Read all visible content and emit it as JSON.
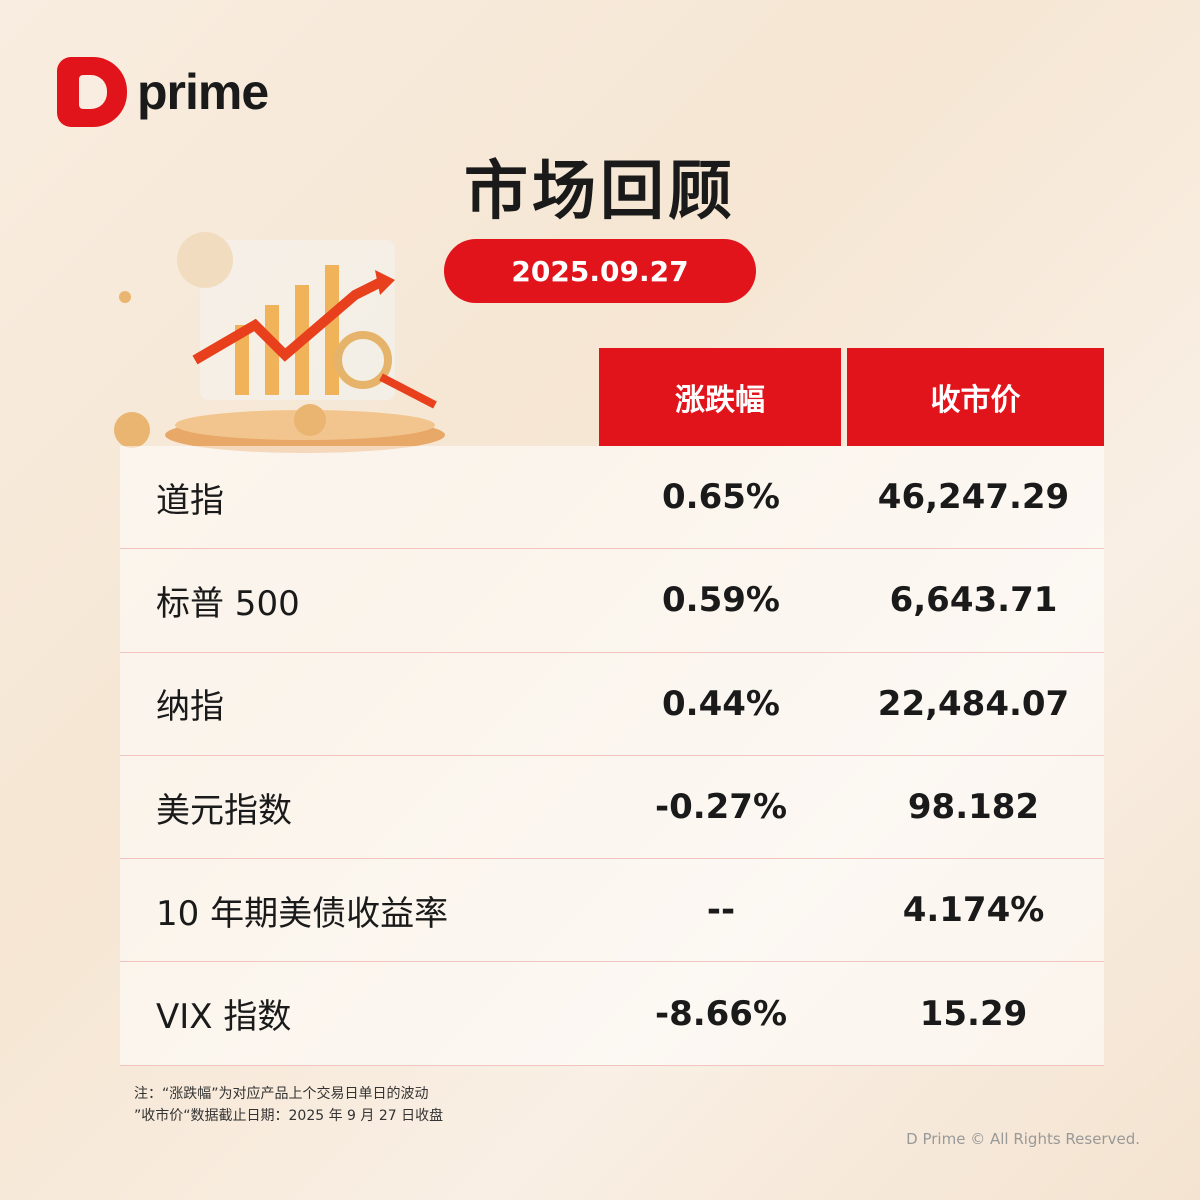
{
  "brand": {
    "name": "prime"
  },
  "title": "市场回顾",
  "date": "2025.09.27",
  "table": {
    "headers": [
      "涨跌幅",
      "收市价"
    ],
    "rows": [
      {
        "name": "道指",
        "change": "0.65%",
        "close": "46,247.29"
      },
      {
        "name": "标普 500",
        "change": "0.59%",
        "close": "6,643.71"
      },
      {
        "name": "纳指",
        "change": "0.44%",
        "close": "22,484.07"
      },
      {
        "name": "美元指数",
        "change": "-0.27%",
        "close": "98.182"
      },
      {
        "name": "10 年期美债收益率",
        "change": "--",
        "close": "4.174%"
      },
      {
        "name": "VIX 指数",
        "change": "-8.66%",
        "close": "15.29"
      }
    ]
  },
  "notes": [
    "注：“涨跌幅”为对应产品上个交易日单日的波动",
    "”收市价“数据截止日期：2025 年 9 月 27 日收盘"
  ],
  "copyright": "D Prime © All Rights Reserved.",
  "colors": {
    "accent": "#e1141c"
  }
}
